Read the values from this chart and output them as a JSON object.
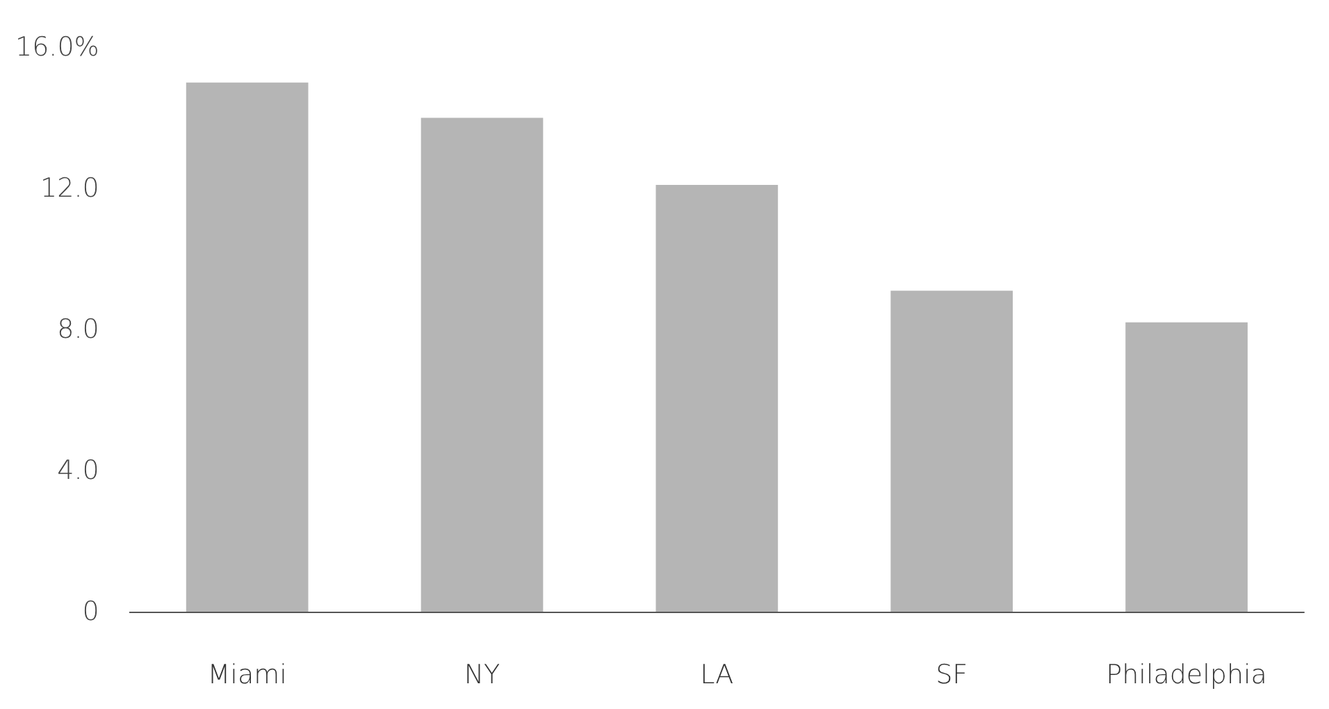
{
  "chart_data": {
    "type": "bar",
    "categories": [
      "Miami",
      "NY",
      "LA",
      "SF",
      "Philadelphia"
    ],
    "values": [
      15.0,
      14.0,
      12.1,
      9.1,
      8.2
    ],
    "color": "#b5b5b5",
    "ylim": [
      0,
      16
    ],
    "yticks": [
      {
        "value": 0,
        "label": "0"
      },
      {
        "value": 4,
        "label": "4.0"
      },
      {
        "value": 8,
        "label": "8.0"
      },
      {
        "value": 12,
        "label": "12.0"
      },
      {
        "value": 16,
        "label": "16.0%"
      }
    ],
    "grid": false
  }
}
